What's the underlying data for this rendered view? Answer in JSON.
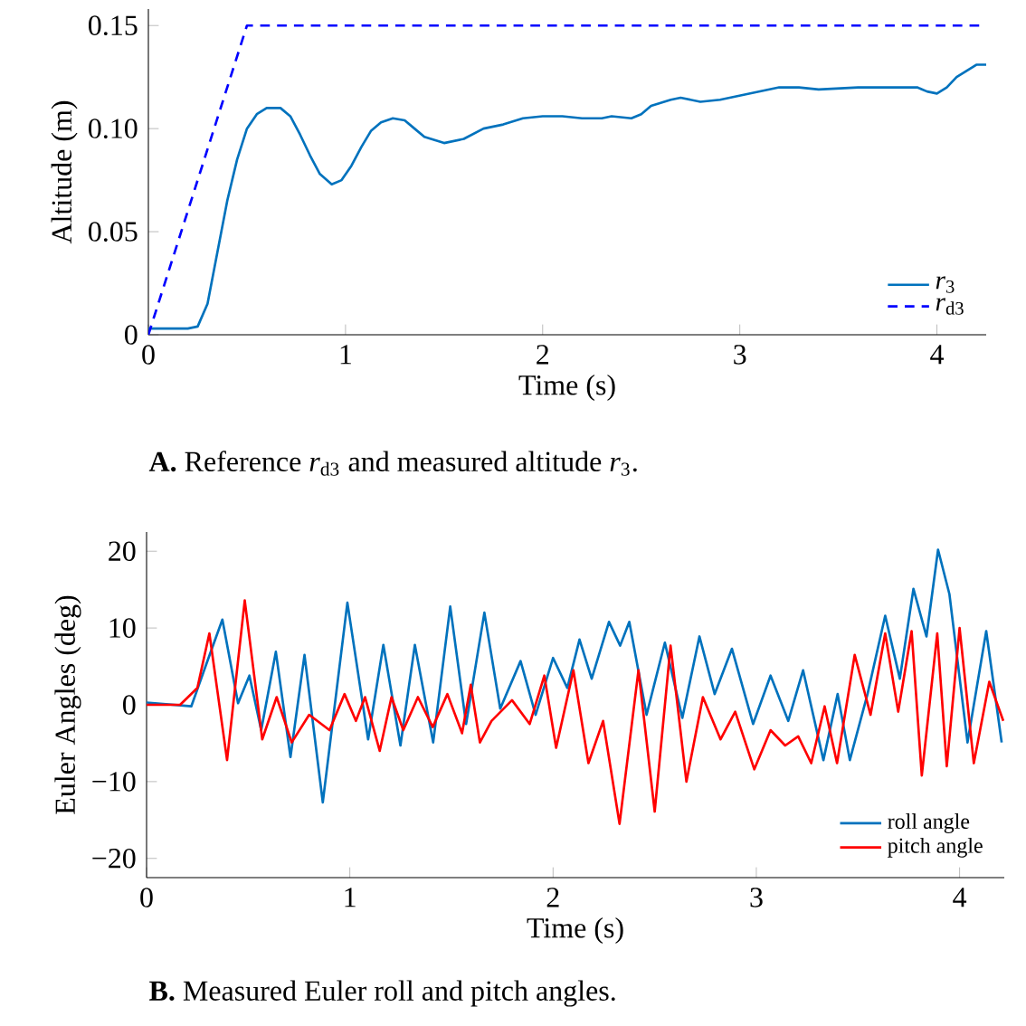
{
  "chart_data": [
    {
      "type": "line",
      "xlabel": "Time (s)",
      "ylabel": "Altitude (m)",
      "xlim": [
        0,
        4.25
      ],
      "ylim": [
        0,
        0.158
      ],
      "xticks": [
        0,
        1,
        2,
        3,
        4
      ],
      "yticks": [
        0,
        0.05,
        {
          "value": 0.1,
          "label": "0.10"
        },
        0.15
      ],
      "legend": "bottom right",
      "annotations": [
        "**A.** Reference *r*$_{d3}$ and measured altitude *r*$_{3}$."
      ],
      "series": [
        {
          "name": "*r*$_{3}$",
          "color": "#0072bd",
          "line_style": "solid",
          "x": [
            0,
            0.2,
            0.25,
            0.3,
            0.35,
            0.4,
            0.45,
            0.5,
            0.55,
            0.6,
            0.67,
            0.72,
            0.77,
            0.82,
            0.87,
            0.93,
            0.98,
            1.03,
            1.08,
            1.13,
            1.18,
            1.24,
            1.3,
            1.35,
            1.4,
            1.5,
            1.6,
            1.7,
            1.8,
            1.9,
            2.0,
            2.1,
            2.2,
            2.3,
            2.35,
            2.45,
            2.5,
            2.55,
            2.65,
            2.7,
            2.8,
            2.9,
            3.0,
            3.1,
            3.2,
            3.3,
            3.4,
            3.6,
            3.7,
            3.8,
            3.9,
            3.95,
            4.0,
            4.05,
            4.1,
            4.2,
            4.25
          ],
          "values": [
            0.003,
            0.003,
            0.004,
            0.015,
            0.04,
            0.065,
            0.085,
            0.1,
            0.107,
            0.11,
            0.11,
            0.106,
            0.097,
            0.087,
            0.078,
            0.073,
            0.075,
            0.082,
            0.091,
            0.099,
            0.103,
            0.105,
            0.104,
            0.1,
            0.096,
            0.093,
            0.095,
            0.1,
            0.102,
            0.105,
            0.106,
            0.106,
            0.105,
            0.105,
            0.106,
            0.105,
            0.107,
            0.111,
            0.114,
            0.115,
            0.113,
            0.114,
            0.116,
            0.118,
            0.12,
            0.12,
            0.119,
            0.12,
            0.12,
            0.12,
            0.12,
            0.118,
            0.117,
            0.12,
            0.125,
            0.131,
            0.131
          ]
        },
        {
          "name": "*r*$_{d3}$",
          "color": "#0000ff",
          "line_style": "dashed",
          "x": [
            0,
            0.5,
            4.25
          ],
          "values": [
            0,
            0.15,
            0.15
          ]
        }
      ]
    },
    {
      "type": "line",
      "xlabel": "Time (s)",
      "ylabel": "Euler Angles (deg)",
      "xlim": [
        0,
        4.22
      ],
      "ylim": [
        -22.5,
        22.5
      ],
      "xticks": [
        0,
        1,
        2,
        3,
        4
      ],
      "yticks": [
        {
          "value": -20,
          "label": "−20"
        },
        {
          "value": -10,
          "label": "−10"
        },
        0,
        10,
        20
      ],
      "legend": "bottom right",
      "annotations": [
        "**B.** Measured Euler roll and pitch angles."
      ],
      "series": [
        {
          "name": "roll angle",
          "color": "#0072bd",
          "line_style": "solid",
          "x": [
            0,
            0.22,
            0.29,
            0.373,
            0.45,
            0.506,
            0.564,
            0.636,
            0.708,
            0.777,
            0.867,
            0.988,
            1.09,
            1.165,
            1.249,
            1.32,
            1.41,
            1.494,
            1.572,
            1.662,
            1.74,
            1.84,
            1.914,
            2.0,
            2.07,
            2.13,
            2.19,
            2.275,
            2.33,
            2.375,
            2.46,
            2.55,
            2.636,
            2.72,
            2.795,
            2.88,
            2.984,
            3.07,
            3.157,
            3.23,
            3.33,
            3.4,
            3.46,
            3.547,
            3.634,
            3.706,
            3.773,
            3.837,
            3.894,
            3.95,
            4.039,
            4.131,
            4.207
          ],
          "values": [
            0.3,
            -0.2,
            5,
            11.1,
            0.2,
            3.8,
            -3.3,
            6.9,
            -6.8,
            6.5,
            -12.7,
            13.3,
            -4.5,
            7.8,
            -5.3,
            7.8,
            -4.9,
            12.8,
            -2.5,
            12,
            -0.5,
            5.7,
            -1.3,
            6.1,
            2.2,
            8.5,
            3.4,
            10.8,
            7.7,
            10.8,
            -1.3,
            8.1,
            -1.7,
            8.9,
            1.4,
            7.3,
            -2.5,
            3.8,
            -2.1,
            4.5,
            -7.2,
            1.4,
            -7.2,
            1.4,
            11.6,
            3.4,
            15.1,
            8.9,
            20.2,
            14.4,
            -4.9,
            9.6,
            -4.9
          ]
        },
        {
          "name": "pitch angle",
          "color": "#ff0000",
          "line_style": "solid",
          "x": [
            0,
            0.165,
            0.25,
            0.309,
            0.396,
            0.483,
            0.569,
            0.64,
            0.714,
            0.8,
            0.9,
            0.974,
            1.03,
            1.075,
            1.147,
            1.205,
            1.263,
            1.335,
            1.408,
            1.48,
            1.552,
            1.595,
            1.64,
            1.697,
            1.798,
            1.885,
            1.957,
            2.015,
            2.1,
            2.174,
            2.246,
            2.327,
            2.42,
            2.5,
            2.578,
            2.656,
            2.737,
            2.824,
            2.896,
            2.99,
            3.07,
            3.142,
            3.206,
            3.27,
            3.336,
            3.397,
            3.484,
            3.562,
            3.634,
            3.698,
            3.764,
            3.814,
            3.89,
            3.937,
            4.0,
            4.07,
            4.146,
            4.215
          ],
          "values": [
            0,
            0,
            2.2,
            9.3,
            -7.2,
            13.6,
            -4.5,
            1,
            -4.9,
            -1.3,
            -3.3,
            1.4,
            -2.1,
            1,
            -6,
            1,
            -3.3,
            1,
            -2.9,
            1.4,
            -3.7,
            2.6,
            -4.9,
            -2.1,
            0.6,
            -2.5,
            3.8,
            -5.6,
            4.5,
            -7.6,
            -2.1,
            -15.5,
            4.5,
            -13.9,
            7.7,
            -10,
            1,
            -4.5,
            -0.9,
            -8.4,
            -3.3,
            -5.3,
            -4.1,
            -7.6,
            -0.2,
            -7.6,
            6.5,
            -1.3,
            9.3,
            -0.9,
            9.6,
            -9.2,
            9.3,
            -8,
            10,
            -7.6,
            3,
            -2.1
          ]
        }
      ]
    }
  ]
}
